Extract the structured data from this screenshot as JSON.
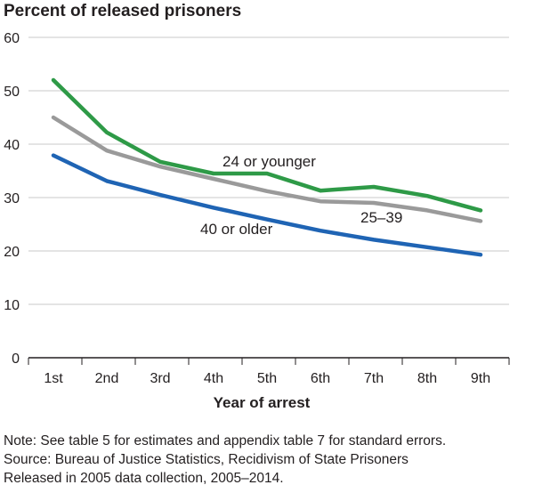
{
  "chart_data": {
    "type": "line",
    "ylabel": "Percent of released prisoners",
    "xlabel": "Year of arrest",
    "categories": [
      "1st",
      "2nd",
      "3rd",
      "4th",
      "5th",
      "6th",
      "7th",
      "8th",
      "9th"
    ],
    "ylim": [
      0,
      60
    ],
    "yticks": [
      "0",
      "10",
      "20",
      "30",
      "40",
      "50",
      "60"
    ],
    "grid": true,
    "series": [
      {
        "name": "24 or younger",
        "color": "#2e9a47",
        "values": [
          52,
          42.2,
          36.7,
          34.5,
          34.5,
          31.3,
          32,
          30.3,
          27.6
        ]
      },
      {
        "name": "25–39",
        "color": "#9a9a9a",
        "values": [
          45,
          38.8,
          35.8,
          33.5,
          31.2,
          29.3,
          29,
          27.6,
          25.6
        ]
      },
      {
        "name": "40 or older",
        "color": "#1f64b4",
        "values": [
          37.9,
          33.1,
          30.5,
          28.1,
          25.9,
          23.8,
          22.1,
          20.7,
          19.3
        ]
      }
    ]
  },
  "notes": {
    "line1": "Note: See table 5 for estimates and appendix table 7 for standard errors.",
    "line2": "Source: Bureau of Justice Statistics, Recidivism of State Prisoners",
    "line3": "Released in 2005 data collection, 2005–2014."
  }
}
